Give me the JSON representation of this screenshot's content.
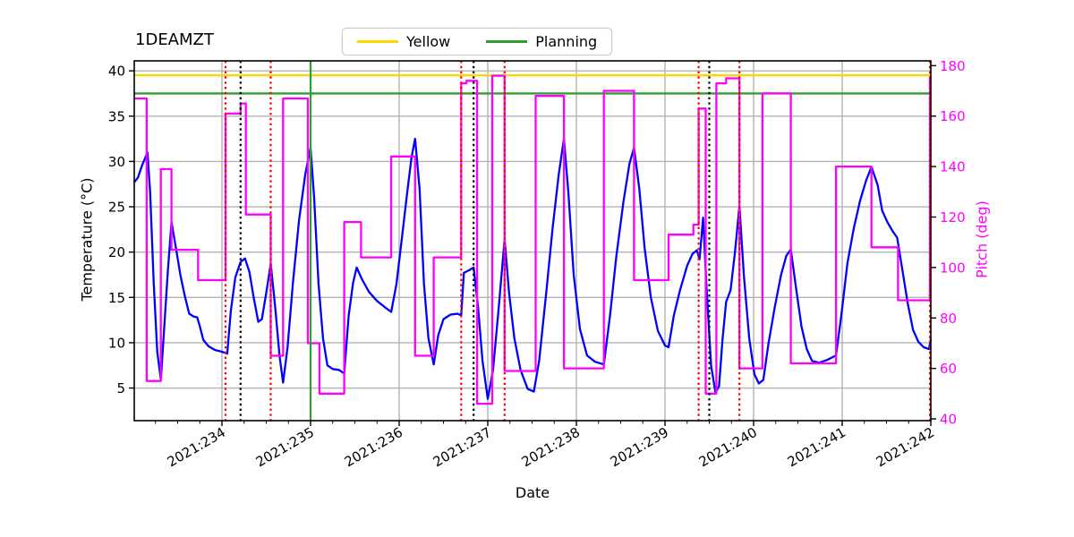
{
  "figure": {
    "title": "1DEAMZT",
    "xlabel": "Date",
    "ylabel_left": "Temperature (°C)",
    "ylabel_right": "Pitch (deg)"
  },
  "legend": {
    "items": [
      {
        "label": "Yellow",
        "color": "#ffd700"
      },
      {
        "label": "Planning",
        "color": "#2e9e2e"
      }
    ]
  },
  "colors": {
    "temperature_line": "#0000ff",
    "pitch_line": "#ff00ff",
    "yellow_limit": "#ffd700",
    "planning_limit": "#2e9e2e",
    "grid": "#b3b3b3",
    "red_vline": "#ff0000",
    "black_vline": "#000000",
    "right_axis_text": "#ff00ff"
  },
  "chart_data": {
    "type": "line",
    "title": "1DEAMZT",
    "xlabel": "Date",
    "ylabel": "Temperature (°C)",
    "ylabel_right": "Pitch (deg)",
    "grid": true,
    "legend_position": "top-center",
    "xlim": [
      233.01,
      242.0
    ],
    "ylim": [
      1.4,
      41.1
    ],
    "ylim_right": [
      39.3,
      181.9
    ],
    "x_tick_values": [
      234,
      235,
      236,
      237,
      238,
      239,
      240,
      241,
      242
    ],
    "x_tick_labels": [
      "2021:234",
      "2021:235",
      "2021:236",
      "2021:237",
      "2021:238",
      "2021:239",
      "2021:240",
      "2021:241",
      "2021:242"
    ],
    "x_minor_step": 0.25,
    "yticks": [
      5,
      10,
      15,
      20,
      25,
      30,
      35,
      40
    ],
    "yticks_right": [
      40,
      60,
      80,
      100,
      120,
      140,
      160,
      180
    ],
    "hlines": [
      {
        "name": "Yellow",
        "value": 39.5,
        "color": "#ffd700",
        "style": "solid"
      },
      {
        "name": "Planning",
        "value": 37.5,
        "color": "#2e9e2e",
        "style": "solid"
      }
    ],
    "vlines": [
      {
        "x": 235.0,
        "color": "#2e9e2e",
        "style": "solid"
      },
      {
        "x": 234.04,
        "color": "#ff0000",
        "style": "dotted"
      },
      {
        "x": 234.55,
        "color": "#ff0000",
        "style": "dotted"
      },
      {
        "x": 236.7,
        "color": "#ff0000",
        "style": "dotted"
      },
      {
        "x": 237.19,
        "color": "#ff0000",
        "style": "dotted"
      },
      {
        "x": 239.38,
        "color": "#ff0000",
        "style": "dotted"
      },
      {
        "x": 239.84,
        "color": "#ff0000",
        "style": "dotted"
      },
      {
        "x": 241.99,
        "color": "#ff0000",
        "style": "dotted"
      },
      {
        "x": 234.21,
        "color": "#000000",
        "style": "dotted"
      },
      {
        "x": 236.84,
        "color": "#000000",
        "style": "dotted"
      },
      {
        "x": 239.5,
        "color": "#000000",
        "style": "dotted"
      }
    ],
    "series": [
      {
        "name": "1DEAMZT temperature",
        "axis": "left",
        "color": "#0000ff",
        "line": "linear",
        "points": [
          [
            233.01,
            27.7
          ],
          [
            233.05,
            28.2
          ],
          [
            233.1,
            29.6
          ],
          [
            233.16,
            31.0
          ],
          [
            233.19,
            26.5
          ],
          [
            233.23,
            16.5
          ],
          [
            233.27,
            9.0
          ],
          [
            233.31,
            5.9
          ],
          [
            233.35,
            12.0
          ],
          [
            233.39,
            18.0
          ],
          [
            233.43,
            23.3
          ],
          [
            233.48,
            20.5
          ],
          [
            233.53,
            17.5
          ],
          [
            233.58,
            15.2
          ],
          [
            233.63,
            13.2
          ],
          [
            233.68,
            12.9
          ],
          [
            233.72,
            12.8
          ],
          [
            233.75,
            11.8
          ],
          [
            233.79,
            10.3
          ],
          [
            233.85,
            9.6
          ],
          [
            233.92,
            9.2
          ],
          [
            234.0,
            9.0
          ],
          [
            234.06,
            8.8
          ],
          [
            234.1,
            13.5
          ],
          [
            234.15,
            17.2
          ],
          [
            234.21,
            18.9
          ],
          [
            234.26,
            19.3
          ],
          [
            234.31,
            17.8
          ],
          [
            234.36,
            14.9
          ],
          [
            234.41,
            12.3
          ],
          [
            234.45,
            12.6
          ],
          [
            234.5,
            15.5
          ],
          [
            234.55,
            18.7
          ],
          [
            234.6,
            14.0
          ],
          [
            234.65,
            8.5
          ],
          [
            234.69,
            5.6
          ],
          [
            234.74,
            9.5
          ],
          [
            234.8,
            16.5
          ],
          [
            234.87,
            23.5
          ],
          [
            234.94,
            28.6
          ],
          [
            235.0,
            31.5
          ],
          [
            235.04,
            26.0
          ],
          [
            235.09,
            16.5
          ],
          [
            235.14,
            10.5
          ],
          [
            235.19,
            7.5
          ],
          [
            235.25,
            7.1
          ],
          [
            235.32,
            7.0
          ],
          [
            235.38,
            6.6
          ],
          [
            235.43,
            13.0
          ],
          [
            235.48,
            16.6
          ],
          [
            235.52,
            18.3
          ],
          [
            235.58,
            17.0
          ],
          [
            235.66,
            15.6
          ],
          [
            235.75,
            14.6
          ],
          [
            235.84,
            13.9
          ],
          [
            235.91,
            13.4
          ],
          [
            235.97,
            16.5
          ],
          [
            236.03,
            21.5
          ],
          [
            236.09,
            26.5
          ],
          [
            236.14,
            30.5
          ],
          [
            236.18,
            32.5
          ],
          [
            236.23,
            27.0
          ],
          [
            236.28,
            16.5
          ],
          [
            236.33,
            10.5
          ],
          [
            236.39,
            7.6
          ],
          [
            236.44,
            10.8
          ],
          [
            236.5,
            12.6
          ],
          [
            236.58,
            13.1
          ],
          [
            236.66,
            13.2
          ],
          [
            236.7,
            13.0
          ],
          [
            236.73,
            17.7
          ],
          [
            236.79,
            18.0
          ],
          [
            236.84,
            18.3
          ],
          [
            236.89,
            14.0
          ],
          [
            236.94,
            8.0
          ],
          [
            237.0,
            3.8
          ],
          [
            237.06,
            7.0
          ],
          [
            237.12,
            13.5
          ],
          [
            237.19,
            21.4
          ],
          [
            237.24,
            15.5
          ],
          [
            237.3,
            10.5
          ],
          [
            237.37,
            7.0
          ],
          [
            237.45,
            4.9
          ],
          [
            237.52,
            4.6
          ],
          [
            237.58,
            8.0
          ],
          [
            237.66,
            15.5
          ],
          [
            237.73,
            22.5
          ],
          [
            237.8,
            28.5
          ],
          [
            237.86,
            32.5
          ],
          [
            237.91,
            26.5
          ],
          [
            237.97,
            17.5
          ],
          [
            238.04,
            11.5
          ],
          [
            238.12,
            8.6
          ],
          [
            238.21,
            7.9
          ],
          [
            238.31,
            7.6
          ],
          [
            238.38,
            13.0
          ],
          [
            238.45,
            19.5
          ],
          [
            238.53,
            25.5
          ],
          [
            238.6,
            29.8
          ],
          [
            238.65,
            31.5
          ],
          [
            238.71,
            27.0
          ],
          [
            238.77,
            20.5
          ],
          [
            238.84,
            15.0
          ],
          [
            238.92,
            11.3
          ],
          [
            239.0,
            9.7
          ],
          [
            239.04,
            9.5
          ],
          [
            239.1,
            13.0
          ],
          [
            239.17,
            15.8
          ],
          [
            239.25,
            18.5
          ],
          [
            239.31,
            19.8
          ],
          [
            239.36,
            20.2
          ],
          [
            239.39,
            19.2
          ],
          [
            239.43,
            23.8
          ],
          [
            239.47,
            16.0
          ],
          [
            239.52,
            7.5
          ],
          [
            239.57,
            4.5
          ],
          [
            239.61,
            5.2
          ],
          [
            239.65,
            10.5
          ],
          [
            239.69,
            14.5
          ],
          [
            239.74,
            15.8
          ],
          [
            239.79,
            20.0
          ],
          [
            239.84,
            25.1
          ],
          [
            239.89,
            17.5
          ],
          [
            239.95,
            10.5
          ],
          [
            240.01,
            6.5
          ],
          [
            240.06,
            5.5
          ],
          [
            240.11,
            5.9
          ],
          [
            240.17,
            10.0
          ],
          [
            240.24,
            14.0
          ],
          [
            240.31,
            17.5
          ],
          [
            240.37,
            19.6
          ],
          [
            240.42,
            20.3
          ],
          [
            240.48,
            16.0
          ],
          [
            240.54,
            11.8
          ],
          [
            240.6,
            9.3
          ],
          [
            240.66,
            8.0
          ],
          [
            240.74,
            7.8
          ],
          [
            240.83,
            8.1
          ],
          [
            240.93,
            8.6
          ],
          [
            240.99,
            13.0
          ],
          [
            241.06,
            18.8
          ],
          [
            241.13,
            22.6
          ],
          [
            241.2,
            25.6
          ],
          [
            241.27,
            27.9
          ],
          [
            241.33,
            29.4
          ],
          [
            241.4,
            27.4
          ],
          [
            241.45,
            24.6
          ],
          [
            241.51,
            23.3
          ],
          [
            241.57,
            22.3
          ],
          [
            241.62,
            21.6
          ],
          [
            241.68,
            18.0
          ],
          [
            241.74,
            14.3
          ],
          [
            241.8,
            11.4
          ],
          [
            241.86,
            10.1
          ],
          [
            241.92,
            9.5
          ],
          [
            241.98,
            9.3
          ],
          [
            242.0,
            10.4
          ]
        ]
      },
      {
        "name": "Pitch",
        "axis": "right",
        "color": "#ff00ff",
        "line": "step-after",
        "points": [
          [
            233.01,
            167
          ],
          [
            233.15,
            55
          ],
          [
            233.31,
            139
          ],
          [
            233.43,
            107
          ],
          [
            233.73,
            95
          ],
          [
            234.04,
            161
          ],
          [
            234.21,
            165
          ],
          [
            234.27,
            121
          ],
          [
            234.55,
            65
          ],
          [
            234.69,
            167
          ],
          [
            234.97,
            70
          ],
          [
            235.1,
            50
          ],
          [
            235.38,
            118
          ],
          [
            235.57,
            104
          ],
          [
            235.91,
            144
          ],
          [
            236.18,
            65
          ],
          [
            236.39,
            104
          ],
          [
            236.7,
            173
          ],
          [
            236.76,
            174
          ],
          [
            236.88,
            46
          ],
          [
            237.05,
            176
          ],
          [
            237.19,
            59
          ],
          [
            237.54,
            168
          ],
          [
            237.86,
            60
          ],
          [
            238.31,
            170
          ],
          [
            238.65,
            95
          ],
          [
            239.04,
            113
          ],
          [
            239.32,
            117
          ],
          [
            239.38,
            163
          ],
          [
            239.46,
            50
          ],
          [
            239.58,
            173
          ],
          [
            239.69,
            175
          ],
          [
            239.84,
            60
          ],
          [
            240.1,
            169
          ],
          [
            240.42,
            62
          ],
          [
            240.93,
            140
          ],
          [
            241.33,
            108
          ],
          [
            241.63,
            87
          ],
          [
            241.99,
            175
          ],
          [
            242.0,
            175
          ]
        ]
      }
    ]
  }
}
